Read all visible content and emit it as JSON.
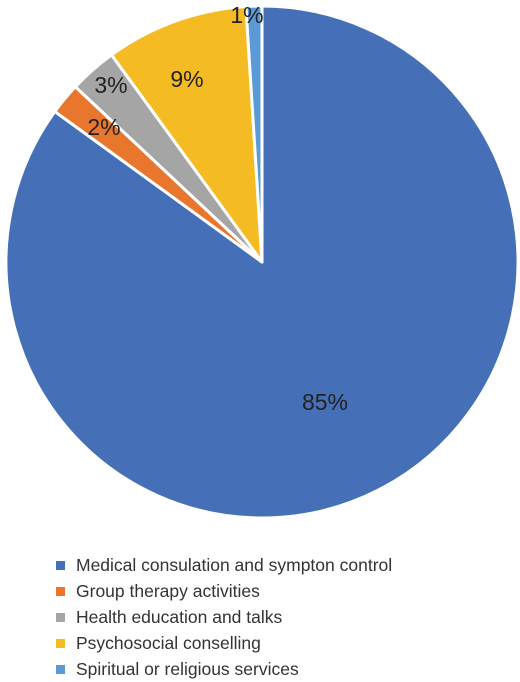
{
  "chart_data": {
    "type": "pie",
    "title": "",
    "categories": [
      "Medical consulation and sympton control",
      "Group therapy activities",
      "Health education and talks",
      "Psychosocial conselling",
      "Spiritual or religious services"
    ],
    "values": [
      85,
      2,
      3,
      9,
      1
    ],
    "labels": [
      "85%",
      "2%",
      "3%",
      "9%",
      "1%"
    ],
    "colors": [
      "#4570b8",
      "#e8762d",
      "#a5a5a5",
      "#f5bb22",
      "#5b9bd5"
    ],
    "legend_position": "bottom"
  }
}
